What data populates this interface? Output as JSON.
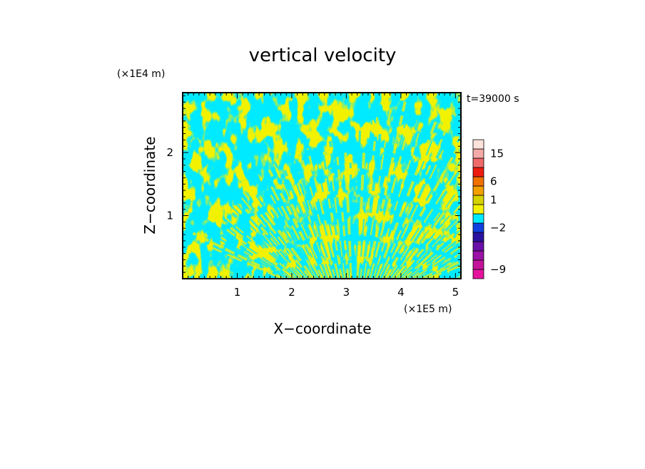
{
  "chart_data": {
    "type": "heatmap",
    "title": "vertical velocity",
    "xlabel": "X−coordinate",
    "ylabel": "Z−coordinate",
    "x_unit": "(×1E5 m)",
    "y_unit": "(×1E4 m)",
    "time_label": "t=39000 s",
    "xlim": [
      0.0,
      5.1
    ],
    "ylim": [
      0.0,
      2.95
    ],
    "x_ticks": [
      {
        "value": 1,
        "label": "1"
      },
      {
        "value": 2,
        "label": "2"
      },
      {
        "value": 3,
        "label": "3"
      },
      {
        "value": 4,
        "label": "4"
      },
      {
        "value": 5,
        "label": "5"
      }
    ],
    "y_ticks": [
      {
        "value": 1,
        "label": "1"
      },
      {
        "value": 2,
        "label": "2"
      }
    ],
    "colorbar": {
      "levels": [
        {
          "color": "#e6129e"
        },
        {
          "color": "#c4139a"
        },
        {
          "color": "#9a12a6"
        },
        {
          "color": "#6a10a8"
        },
        {
          "color": "#2a12a0"
        },
        {
          "color": "#1040e0"
        },
        {
          "color": "#00eaff"
        },
        {
          "color": "#f2f200"
        },
        {
          "color": "#d6d200"
        },
        {
          "color": "#f2a000"
        },
        {
          "color": "#f07000"
        },
        {
          "color": "#ee1c10"
        },
        {
          "color": "#f06a6a"
        },
        {
          "color": "#f4aaa8"
        },
        {
          "color": "#fde2dc"
        }
      ],
      "labels": [
        {
          "level": 1,
          "text": "−9"
        },
        {
          "level": 5.5,
          "text": "−2"
        },
        {
          "level": 8.5,
          "text": "1"
        },
        {
          "level": 10.5,
          "text": "6"
        },
        {
          "level": 13.5,
          "text": "15"
        }
      ]
    },
    "field": {
      "dominant_colors": [
        "#00eaff",
        "#f2f200"
      ],
      "description_of_values": "vertical velocity alternates between small positive and small negative values across the domain"
    }
  }
}
